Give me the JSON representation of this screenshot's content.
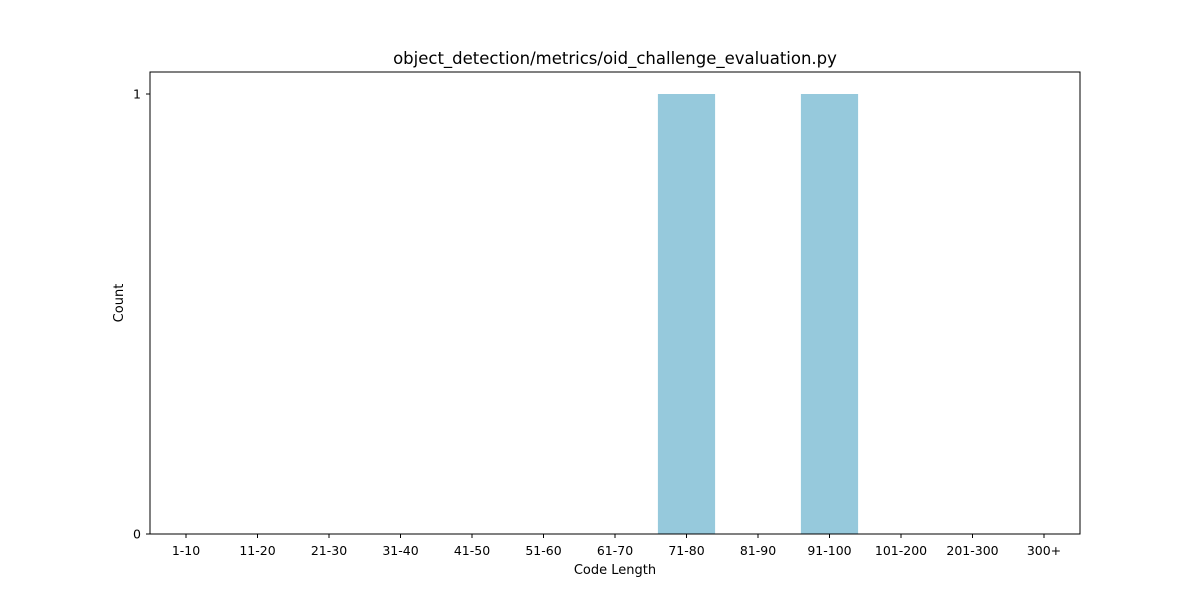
{
  "chart_data": {
    "type": "bar",
    "title": "object_detection/metrics/oid_challenge_evaluation.py",
    "xlabel": "Code Length",
    "ylabel": "Count",
    "categories": [
      "1-10",
      "11-20",
      "21-30",
      "31-40",
      "41-50",
      "51-60",
      "61-70",
      "71-80",
      "81-90",
      "91-100",
      "101-200",
      "201-300",
      "300+"
    ],
    "values": [
      0,
      0,
      0,
      0,
      0,
      0,
      0,
      1,
      0,
      1,
      0,
      0,
      0
    ],
    "ylim": [
      0,
      1.05
    ],
    "yticks": [
      0,
      1
    ],
    "bar_color": "#96c9dc",
    "grid": false,
    "legend": "none"
  }
}
